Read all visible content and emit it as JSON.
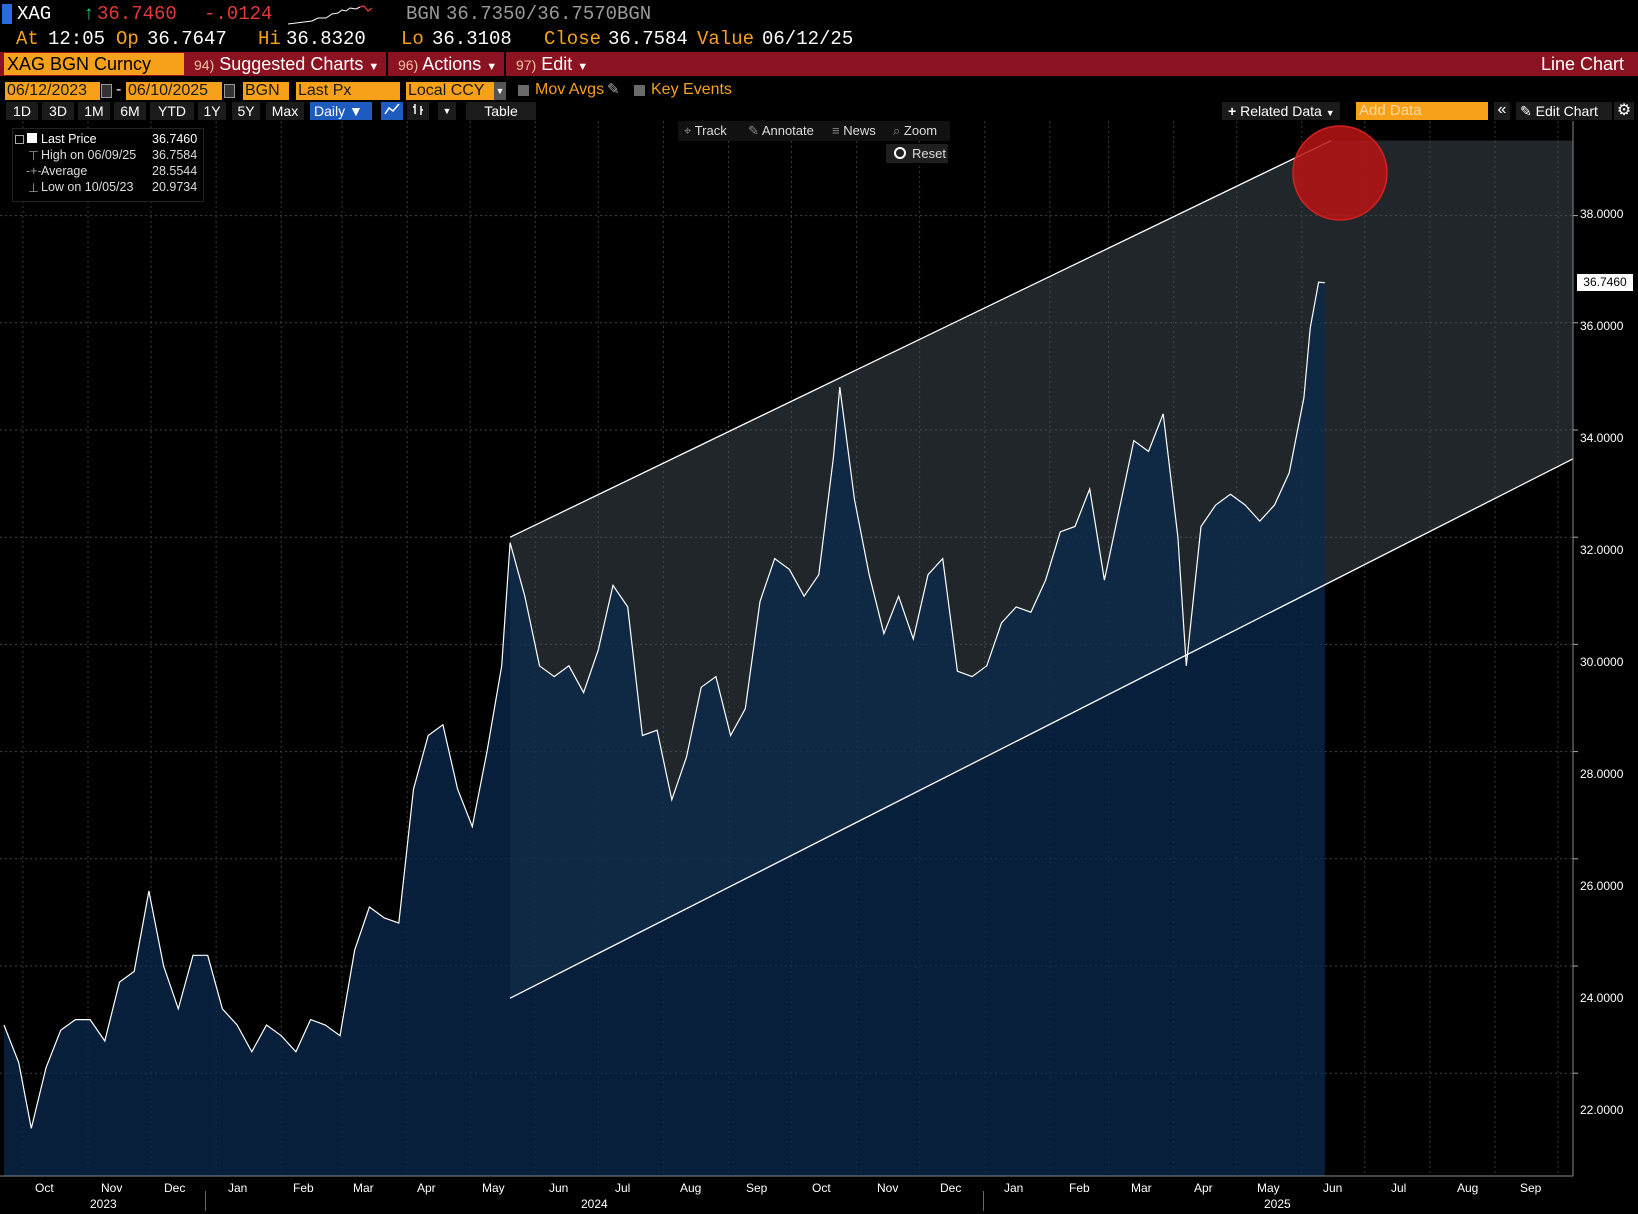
{
  "header": {
    "ticker": "XAG",
    "last": "36.7460",
    "change": "-.0124",
    "source": "BGN",
    "bid_ask": "36.7350/36.7570",
    "source2": "BGN",
    "at_label": "At",
    "at_value": "12:05",
    "op_label": "Op",
    "op_value": "36.7647",
    "hi_label": "Hi",
    "hi_value": "36.8320",
    "lo_label": "Lo",
    "lo_value": "36.3108",
    "close_label": "Close",
    "close_value": "36.7584",
    "value_label": "Value",
    "value_value": "06/12/25",
    "colors": {
      "up": "#31c96a",
      "down": "#e23a3a",
      "accent": "#f7a11a",
      "menu_bar": "#8b1220"
    }
  },
  "menu": {
    "security": "XAG BGN Curncy",
    "suggested_num": "94)",
    "suggested": "Suggested Charts",
    "actions_num": "96)",
    "actions": "Actions",
    "edit_num": "97)",
    "edit": "Edit",
    "chart_type": "Line Chart"
  },
  "controls": {
    "start_date": "06/12/2023",
    "dash": "-",
    "end_date": "06/10/2025",
    "source": "BGN",
    "field": "Last Px",
    "currency": "Local CCY",
    "mov_avgs": "Mov Avgs",
    "key_events": "Key Events",
    "periods": [
      "1D",
      "3D",
      "1M",
      "6M",
      "YTD",
      "1Y",
      "5Y",
      "Max"
    ],
    "frequency": "Daily",
    "table": "Table",
    "related_data": "Related Data",
    "add_data_placeholder": "Add Data",
    "edit_chart": "Edit Chart",
    "track": "Track",
    "annotate": "Annotate",
    "news": "News",
    "zoom": "Zoom",
    "reset": "Reset"
  },
  "legend": {
    "last_label": "Last Price",
    "last_value": "36.7460",
    "high_label": "High on 06/09/25",
    "high_value": "36.7584",
    "avg_label": "Average",
    "avg_value": "28.5544",
    "low_label": "Low on 10/05/23",
    "low_value": "20.9734"
  },
  "chart_data": {
    "type": "area",
    "title": "",
    "xlabel": "",
    "ylabel": "",
    "ylim": [
      20.7,
      39.3
    ],
    "yticks": [
      "22.0000",
      "24.0000",
      "26.0000",
      "28.0000",
      "30.0000",
      "32.0000",
      "34.0000",
      "36.0000",
      "38.0000"
    ],
    "last_value_label": "36.7460",
    "xticks": [
      "Oct",
      "Nov",
      "Dec",
      "Jan",
      "Feb",
      "Mar",
      "Apr",
      "May",
      "Jun",
      "Jul",
      "Aug",
      "Sep",
      "Oct",
      "Nov",
      "Dec",
      "Jan",
      "Feb",
      "Mar",
      "Apr",
      "May",
      "Jun",
      "Jul",
      "Aug",
      "Sep"
    ],
    "year_labels": [
      "2023",
      "2024",
      "2025"
    ],
    "series": [
      {
        "points": [
          [
            "2023-09-22",
            22.9
          ],
          [
            "2023-09-29",
            22.2
          ],
          [
            "2023-10-05",
            20.97
          ],
          [
            "2023-10-12",
            22.1
          ],
          [
            "2023-10-19",
            22.8
          ],
          [
            "2023-10-26",
            23.0
          ],
          [
            "2023-11-02",
            23.0
          ],
          [
            "2023-11-09",
            22.6
          ],
          [
            "2023-11-16",
            23.7
          ],
          [
            "2023-11-23",
            23.9
          ],
          [
            "2023-11-30",
            25.4
          ],
          [
            "2023-12-07",
            24.0
          ],
          [
            "2023-12-14",
            23.2
          ],
          [
            "2023-12-21",
            24.2
          ],
          [
            "2023-12-28",
            24.2
          ],
          [
            "2024-01-04",
            23.2
          ],
          [
            "2024-01-11",
            22.9
          ],
          [
            "2024-01-18",
            22.4
          ],
          [
            "2024-01-25",
            22.9
          ],
          [
            "2024-02-01",
            22.7
          ],
          [
            "2024-02-08",
            22.4
          ],
          [
            "2024-02-15",
            23.0
          ],
          [
            "2024-02-22",
            22.9
          ],
          [
            "2024-02-29",
            22.7
          ],
          [
            "2024-03-07",
            24.3
          ],
          [
            "2024-03-14",
            25.1
          ],
          [
            "2024-03-21",
            24.9
          ],
          [
            "2024-03-28",
            24.8
          ],
          [
            "2024-04-04",
            27.3
          ],
          [
            "2024-04-11",
            28.3
          ],
          [
            "2024-04-18",
            28.5
          ],
          [
            "2024-04-25",
            27.3
          ],
          [
            "2024-05-02",
            26.6
          ],
          [
            "2024-05-09",
            28.0
          ],
          [
            "2024-05-16",
            29.6
          ],
          [
            "2024-05-20",
            31.9
          ],
          [
            "2024-05-27",
            30.9
          ],
          [
            "2024-06-03",
            29.6
          ],
          [
            "2024-06-10",
            29.4
          ],
          [
            "2024-06-17",
            29.6
          ],
          [
            "2024-06-24",
            29.1
          ],
          [
            "2024-07-01",
            29.9
          ],
          [
            "2024-07-08",
            31.1
          ],
          [
            "2024-07-15",
            30.7
          ],
          [
            "2024-07-22",
            28.3
          ],
          [
            "2024-07-29",
            28.4
          ],
          [
            "2024-08-05",
            27.1
          ],
          [
            "2024-08-12",
            27.9
          ],
          [
            "2024-08-19",
            29.2
          ],
          [
            "2024-08-26",
            29.4
          ],
          [
            "2024-09-02",
            28.3
          ],
          [
            "2024-09-09",
            28.8
          ],
          [
            "2024-09-16",
            30.8
          ],
          [
            "2024-09-23",
            31.6
          ],
          [
            "2024-09-30",
            31.4
          ],
          [
            "2024-10-07",
            30.9
          ],
          [
            "2024-10-14",
            31.3
          ],
          [
            "2024-10-21",
            33.5
          ],
          [
            "2024-10-24",
            34.8
          ],
          [
            "2024-10-31",
            32.7
          ],
          [
            "2024-11-07",
            31.3
          ],
          [
            "2024-11-14",
            30.2
          ],
          [
            "2024-11-21",
            30.9
          ],
          [
            "2024-11-28",
            30.1
          ],
          [
            "2024-12-05",
            31.3
          ],
          [
            "2024-12-12",
            31.6
          ],
          [
            "2024-12-19",
            29.5
          ],
          [
            "2024-12-26",
            29.4
          ],
          [
            "2025-01-02",
            29.6
          ],
          [
            "2025-01-09",
            30.4
          ],
          [
            "2025-01-16",
            30.7
          ],
          [
            "2025-01-23",
            30.6
          ],
          [
            "2025-01-30",
            31.2
          ],
          [
            "2025-02-06",
            32.1
          ],
          [
            "2025-02-13",
            32.2
          ],
          [
            "2025-02-20",
            32.9
          ],
          [
            "2025-02-27",
            31.2
          ],
          [
            "2025-03-06",
            32.5
          ],
          [
            "2025-03-13",
            33.8
          ],
          [
            "2025-03-20",
            33.6
          ],
          [
            "2025-03-27",
            34.3
          ],
          [
            "2025-04-03",
            32.0
          ],
          [
            "2025-04-07",
            29.6
          ],
          [
            "2025-04-14",
            32.2
          ],
          [
            "2025-04-21",
            32.6
          ],
          [
            "2025-04-28",
            32.8
          ],
          [
            "2025-05-05",
            32.6
          ],
          [
            "2025-05-12",
            32.3
          ],
          [
            "2025-05-19",
            32.6
          ],
          [
            "2025-05-26",
            33.2
          ],
          [
            "2025-06-02",
            34.6
          ],
          [
            "2025-06-05",
            35.9
          ],
          [
            "2025-06-09",
            36.7584
          ],
          [
            "2025-06-12",
            36.746
          ]
        ]
      }
    ],
    "channel": {
      "upper": [
        [
          "2024-05-20",
          32.0
        ],
        [
          "2025-06-15",
          39.4
        ]
      ],
      "lower": [
        [
          "2024-05-20",
          23.4
        ],
        [
          "2025-09-30",
          33.3
        ]
      ]
    },
    "grid": true,
    "colors": {
      "area": "#0a2a4e",
      "channel_fill": "#4a5560",
      "line": "#ffffff",
      "marker": "#c01515"
    }
  }
}
